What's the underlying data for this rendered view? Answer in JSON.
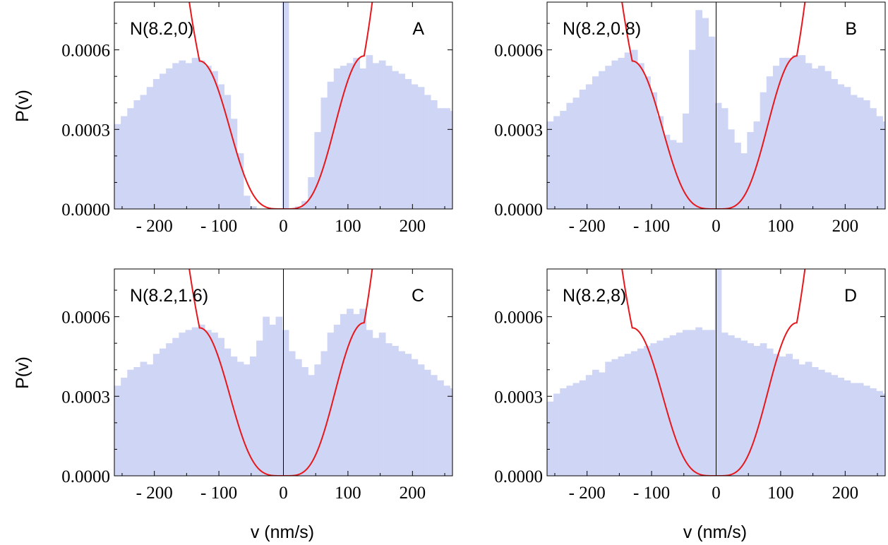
{
  "figure": {
    "xlabel": "v (nm/s)",
    "ylabel": "P(v)",
    "colors": {
      "histogram": "#cfd5f5",
      "curve": "#e8171b",
      "axis": "#000000"
    }
  },
  "chart_data": [
    {
      "type": "bar",
      "panel": "A",
      "title": "N(8.2,0)",
      "letter": "A",
      "xlabel": "",
      "ylabel": "P(v)",
      "xlim": [
        -262,
        262
      ],
      "ylim": [
        0,
        0.00078
      ],
      "xticks": [
        -200,
        -100,
        0,
        100,
        200
      ],
      "xtick_labels": [
        "- 200",
        "- 100",
        "0",
        "100",
        "200"
      ],
      "yticks": [
        0,
        0.0003,
        0.0006
      ],
      "ytick_labels": [
        "0.0000",
        "0.0003",
        "0.0006"
      ],
      "bin_start": -262,
      "bin_width": 10,
      "values": [
        0.00032,
        0.00035,
        0.00038,
        0.00041,
        0.00043,
        0.00046,
        0.00049,
        0.00051,
        0.00053,
        0.00055,
        0.00056,
        0.00055,
        0.00057,
        0.00056,
        0.00054,
        0.00052,
        0.00047,
        0.00043,
        0.00034,
        0.00021,
        5e-05,
        1e-05,
        0.0,
        0.0,
        0.0,
        0.0,
        0.00078,
        0.0,
        1e-05,
        3e-05,
        0.00012,
        0.00029,
        0.00042,
        0.00048,
        0.00053,
        0.00054,
        0.00055,
        0.00057,
        0.00053,
        0.00058,
        0.00055,
        0.00056,
        0.00054,
        0.00052,
        0.00051,
        0.00049,
        0.00047,
        0.00046,
        0.00043,
        0.00041,
        0.00038,
        0.00038,
        0.00037
      ],
      "curve": {
        "peak_left": -130,
        "peak_right": 125,
        "amp_left": 0.000558,
        "amp_right": 0.000577,
        "at_edges": 0.000328
      }
    },
    {
      "type": "bar",
      "panel": "B",
      "title": "N(8.2,0.8)",
      "letter": "B",
      "xlabel": "",
      "ylabel": "P(v)",
      "xlim": [
        -262,
        262
      ],
      "ylim": [
        0,
        0.00078
      ],
      "xticks": [
        -200,
        -100,
        0,
        100,
        200
      ],
      "xtick_labels": [
        "- 200",
        "- 100",
        "0",
        "100",
        "200"
      ],
      "yticks": [
        0,
        0.0003,
        0.0006
      ],
      "ytick_labels": [
        "0.0000",
        "0.0003",
        "0.0006"
      ],
      "bin_start": -262,
      "bin_width": 10,
      "values": [
        0.00033,
        0.00035,
        0.00037,
        0.0004,
        0.00042,
        0.00045,
        0.00047,
        0.0005,
        0.00052,
        0.00054,
        0.00056,
        0.00057,
        0.00059,
        0.0006,
        0.00055,
        0.0005,
        0.00044,
        0.00035,
        0.00028,
        0.00026,
        0.00025,
        0.00036,
        0.0006,
        0.00075,
        0.00072,
        0.00065,
        0.0004,
        0.00038,
        0.0003,
        0.00025,
        0.00021,
        0.00029,
        0.00033,
        0.00044,
        0.0005,
        0.00054,
        0.00057,
        0.00057,
        0.00058,
        0.00058,
        0.00055,
        0.00053,
        0.00054,
        0.00052,
        0.00049,
        0.00047,
        0.00046,
        0.00043,
        0.00042,
        0.00041,
        0.00038,
        0.00035,
        0.00033
      ],
      "curve": {
        "peak_left": -130,
        "peak_right": 125,
        "amp_left": 0.000558,
        "amp_right": 0.000577,
        "at_edges": 0.000328
      }
    },
    {
      "type": "bar",
      "panel": "C",
      "title": "N(8.2,1.6)",
      "letter": "C",
      "xlabel": "v (nm/s)",
      "ylabel": "P(v)",
      "xlim": [
        -262,
        262
      ],
      "ylim": [
        0,
        0.00078
      ],
      "xticks": [
        -200,
        -100,
        0,
        100,
        200
      ],
      "xtick_labels": [
        "- 200",
        "- 100",
        "0",
        "100",
        "200"
      ],
      "yticks": [
        0,
        0.0003,
        0.0006
      ],
      "ytick_labels": [
        "0.0000",
        "0.0003",
        "0.0006"
      ],
      "bin_start": -262,
      "bin_width": 10,
      "values": [
        0.00034,
        0.00037,
        0.0004,
        0.00041,
        0.00043,
        0.00042,
        0.00046,
        0.00048,
        0.0005,
        0.00052,
        0.00054,
        0.00055,
        0.00056,
        0.00057,
        0.00055,
        0.00054,
        0.00052,
        0.00048,
        0.00045,
        0.00043,
        0.00042,
        0.00045,
        0.00051,
        0.0006,
        0.00057,
        0.0006,
        0.00055,
        0.00047,
        0.00044,
        0.00041,
        0.00038,
        0.00042,
        0.00047,
        0.00054,
        0.00057,
        0.00061,
        0.00063,
        0.00061,
        0.00063,
        0.00055,
        0.00052,
        0.00054,
        0.0005,
        0.00049,
        0.00047,
        0.00046,
        0.00044,
        0.00042,
        0.0004,
        0.00038,
        0.00036,
        0.00034,
        0.00033
      ],
      "curve": {
        "peak_left": -130,
        "peak_right": 125,
        "amp_left": 0.000558,
        "amp_right": 0.000577,
        "at_edges": 0.000328
      }
    },
    {
      "type": "bar",
      "panel": "D",
      "title": "N(8.2,8)",
      "letter": "D",
      "xlabel": "v (nm/s)",
      "ylabel": "",
      "xlim": [
        -262,
        262
      ],
      "ylim": [
        0,
        0.00078
      ],
      "xticks": [
        -200,
        -100,
        0,
        100,
        200
      ],
      "xtick_labels": [
        "- 200",
        "- 100",
        "0",
        "100",
        "200"
      ],
      "yticks": [
        0,
        0.0003,
        0.0006
      ],
      "ytick_labels": [
        "0.0000",
        "0.0003",
        "0.0006"
      ],
      "bin_start": -262,
      "bin_width": 10,
      "values": [
        0.00028,
        0.00031,
        0.00033,
        0.00034,
        0.00035,
        0.00036,
        0.00038,
        0.0004,
        0.00039,
        0.00043,
        0.00044,
        0.00045,
        0.00046,
        0.00047,
        0.00048,
        0.00049,
        0.0005,
        0.00051,
        0.00052,
        0.00053,
        0.00054,
        0.00055,
        0.00055,
        0.00056,
        0.00055,
        0.00055,
        0.00078,
        0.00054,
        0.00053,
        0.00052,
        0.00051,
        0.0005,
        0.00049,
        0.0005,
        0.00048,
        0.00046,
        0.00045,
        0.00046,
        0.00044,
        0.00042,
        0.00043,
        0.00041,
        0.0004,
        0.00039,
        0.00038,
        0.00037,
        0.00036,
        0.00035,
        0.00035,
        0.00034,
        0.00033,
        0.00032,
        0.00031
      ],
      "curve": {
        "peak_left": -130,
        "peak_right": 125,
        "amp_left": 0.000558,
        "amp_right": 0.000577,
        "at_edges": 0.000328
      }
    }
  ]
}
